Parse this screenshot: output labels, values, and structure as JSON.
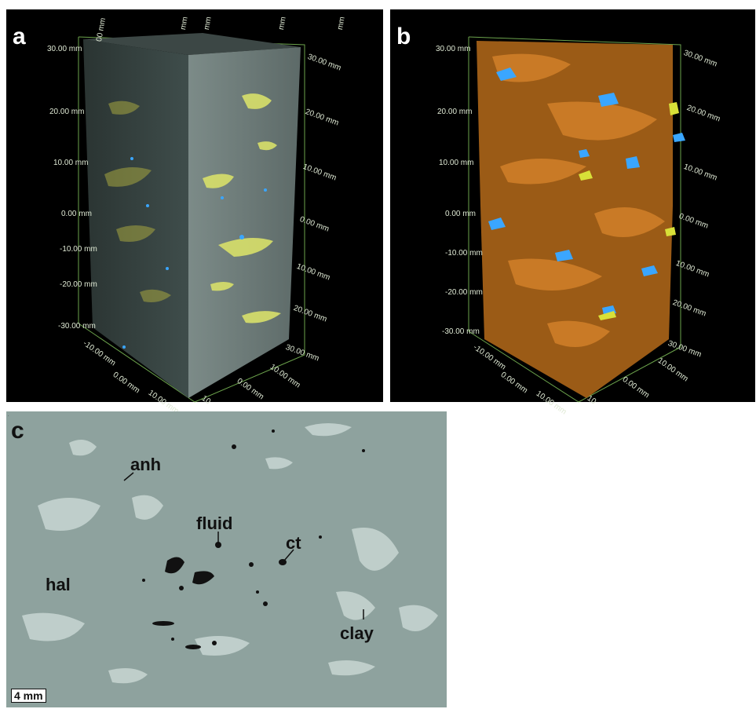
{
  "panels": {
    "a": {
      "letter": "a"
    },
    "b": {
      "letter": "b"
    },
    "c": {
      "letter": "c"
    }
  },
  "axis_ticks": {
    "left": [
      "30.00 mm",
      "20.00 mm",
      "10.00 mm",
      "0.00 mm",
      "-10.00 mm",
      "-20.00 mm",
      "-30.00 mm"
    ],
    "right": [
      "30.00 mm",
      "20.00 mm",
      "10.00 mm",
      "0.00 mm",
      "10.00 mm",
      "20.00 mm",
      "30.00 mm"
    ],
    "bottom_left": [
      "-10.00 mm",
      "0.00 mm",
      "10.00 mm"
    ],
    "bottom_right": [
      "10.00 mm",
      "0.00 mm",
      "10"
    ],
    "top": [
      "00 mm",
      "mm",
      "mm",
      "mm",
      "mm"
    ]
  },
  "annotations": {
    "anh": "anh",
    "fluid": "fluid",
    "ct": "ct",
    "hal": "hal",
    "clay": "clay"
  },
  "scale_bar": "4 mm",
  "colors": {
    "anhydrite_a": "#d8e06a",
    "halite_core": "#8a9794",
    "clay_orange": "#b8681a",
    "fluid_blue": "#3aa6ff",
    "axis_green": "#7fc05a"
  }
}
